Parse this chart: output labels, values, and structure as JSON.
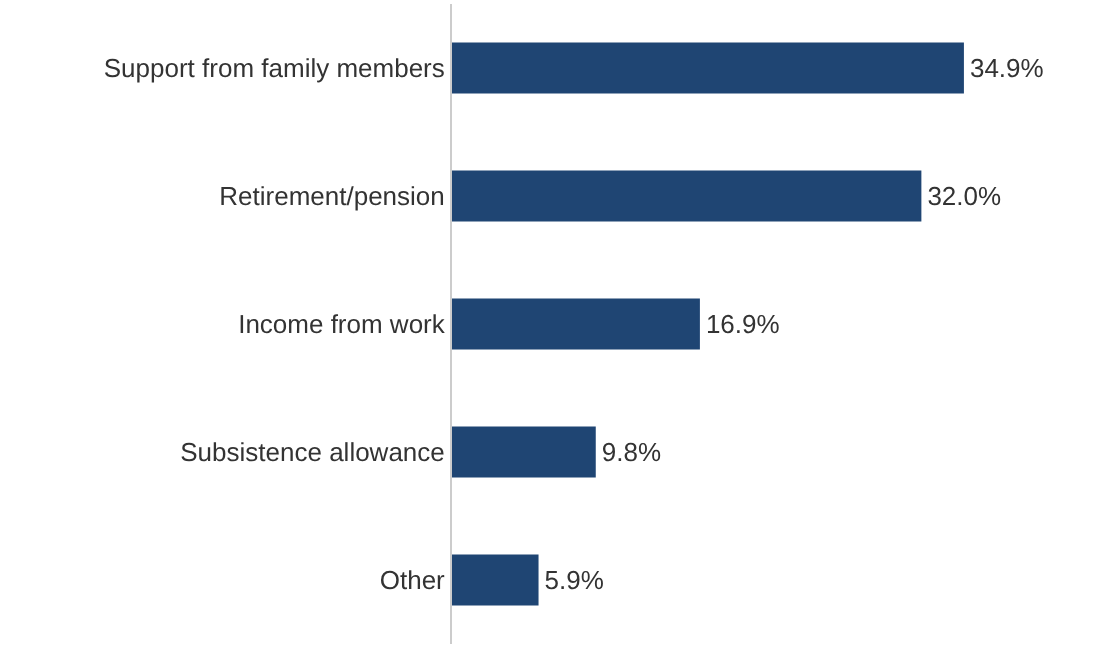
{
  "chart_data": {
    "type": "bar",
    "orientation": "horizontal",
    "categories": [
      "Support from family members",
      "Retirement/pension",
      "Income from work",
      "Subsistence allowance",
      "Other"
    ],
    "values": [
      34.9,
      32.0,
      16.9,
      9.8,
      5.9
    ],
    "value_labels": [
      "34.9%",
      "32.0%",
      "16.9%",
      "9.8%",
      "5.9%"
    ],
    "color": "#1f4573"
  }
}
